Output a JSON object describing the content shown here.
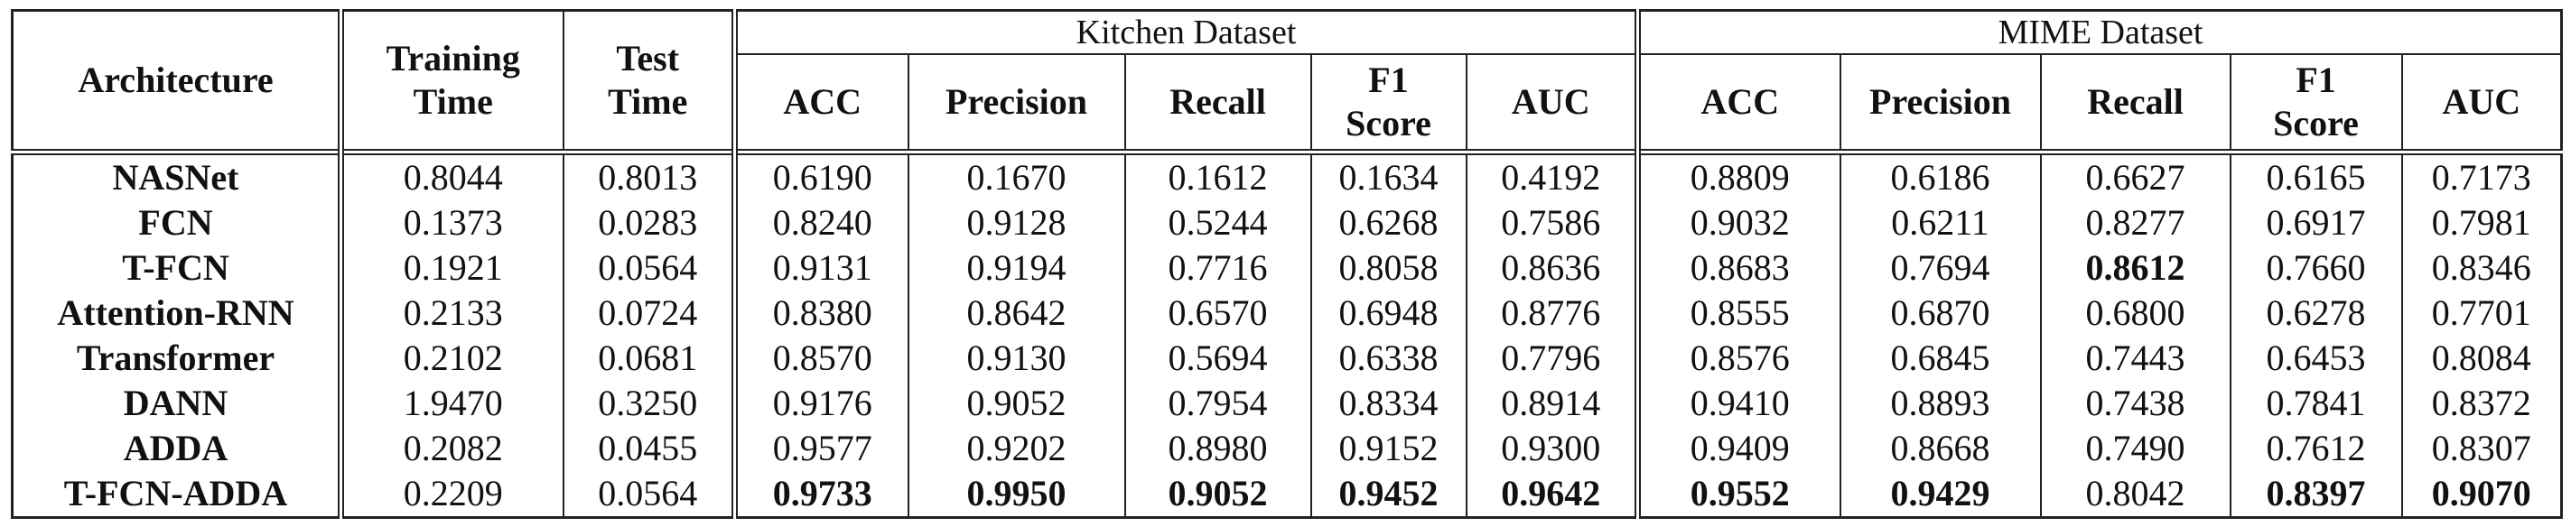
{
  "table": {
    "header": {
      "architecture": "Architecture",
      "training_time": [
        "Training",
        "Time"
      ],
      "test_time": [
        "Test",
        "Time"
      ],
      "kitchen_group": "Kitchen Dataset",
      "mime_group": "MIME Dataset",
      "metrics": [
        "ACC",
        "Precision",
        "Recall",
        [
          "F1",
          "Score"
        ],
        "AUC"
      ]
    },
    "rows": [
      {
        "arch": "NASNet",
        "train": "0.8044",
        "test": "0.8013",
        "kitchen": [
          "0.6190",
          "0.1670",
          "0.1612",
          "0.1634",
          "0.4192"
        ],
        "mime": [
          "0.8809",
          "0.6186",
          "0.6627",
          "0.6165",
          "0.7173"
        ]
      },
      {
        "arch": "FCN",
        "train": "0.1373",
        "test": "0.0283",
        "kitchen": [
          "0.8240",
          "0.9128",
          "0.5244",
          "0.6268",
          "0.7586"
        ],
        "mime": [
          "0.9032",
          "0.6211",
          "0.8277",
          "0.6917",
          "0.7981"
        ]
      },
      {
        "arch": "T-FCN",
        "train": "0.1921",
        "test": "0.0564",
        "kitchen": [
          "0.9131",
          "0.9194",
          "0.7716",
          "0.8058",
          "0.8636"
        ],
        "mime": [
          "0.8683",
          "0.7694",
          "0.8612",
          "0.7660",
          "0.8346"
        ]
      },
      {
        "arch": "Attention-RNN",
        "train": "0.2133",
        "test": "0.0724",
        "kitchen": [
          "0.8380",
          "0.8642",
          "0.6570",
          "0.6948",
          "0.8776"
        ],
        "mime": [
          "0.8555",
          "0.6870",
          "0.6800",
          "0.6278",
          "0.7701"
        ]
      },
      {
        "arch": "Transformer",
        "train": "0.2102",
        "test": "0.0681",
        "kitchen": [
          "0.8570",
          "0.9130",
          "0.5694",
          "0.6338",
          "0.7796"
        ],
        "mime": [
          "0.8576",
          "0.6845",
          "0.7443",
          "0.6453",
          "0.8084"
        ]
      },
      {
        "arch": "DANN",
        "train": "1.9470",
        "test": "0.3250",
        "kitchen": [
          "0.9176",
          "0.9052",
          "0.7954",
          "0.8334",
          "0.8914"
        ],
        "mime": [
          "0.9410",
          "0.8893",
          "0.7438",
          "0.7841",
          "0.8372"
        ]
      },
      {
        "arch": "ADDA",
        "train": "0.2082",
        "test": "0.0455",
        "kitchen": [
          "0.9577",
          "0.9202",
          "0.8980",
          "0.9152",
          "0.9300"
        ],
        "mime": [
          "0.9409",
          "0.8668",
          "0.7490",
          "0.7612",
          "0.8307"
        ]
      },
      {
        "arch": "T-FCN-ADDA",
        "train": "0.2209",
        "test": "0.0564",
        "kitchen": [
          "0.9733",
          "0.9950",
          "0.9052",
          "0.9452",
          "0.9642"
        ],
        "mime": [
          "0.9552",
          "0.9429",
          "0.8042",
          "0.8397",
          "0.9070"
        ]
      }
    ],
    "bold_cells": {
      "kitchen": [
        [
          7,
          0
        ],
        [
          7,
          1
        ],
        [
          7,
          2
        ],
        [
          7,
          3
        ],
        [
          7,
          4
        ]
      ],
      "mime": [
        [
          2,
          2
        ],
        [
          7,
          0
        ],
        [
          7,
          1
        ],
        [
          7,
          3
        ],
        [
          7,
          4
        ]
      ]
    }
  }
}
